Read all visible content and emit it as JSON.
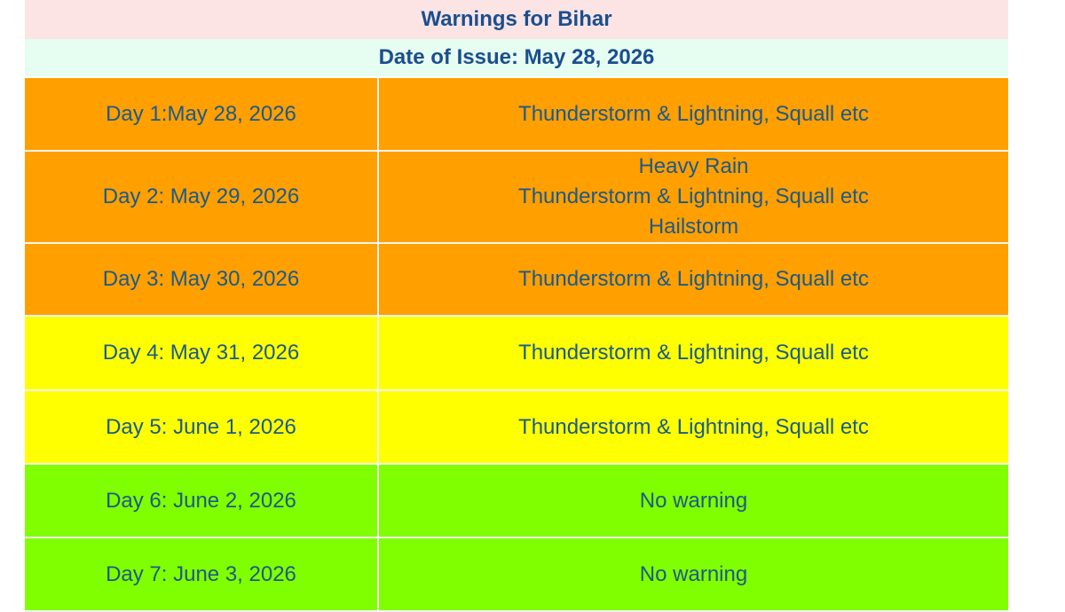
{
  "header": {
    "title": "Warnings for Bihar",
    "date": "Date of Issue: May 28, 2026"
  },
  "table": {
    "rows": [
      {
        "day": "Day 1:May 28, 2026",
        "warnings": [
          "Thunderstorm & Lightning, Squall etc"
        ]
      },
      {
        "day": "Day 2: May 29, 2026",
        "warnings": [
          "Heavy Rain",
          "Thunderstorm & Lightning, Squall etc",
          "Hailstorm"
        ]
      },
      {
        "day": "Day 3: May 30, 2026",
        "warnings": [
          "Thunderstorm & Lightning, Squall etc"
        ]
      },
      {
        "day": "Day 4: May 31, 2026",
        "warnings": [
          "Thunderstorm & Lightning, Squall etc"
        ]
      },
      {
        "day": "Day 5: June 1, 2026",
        "warnings": [
          "Thunderstorm & Lightning, Squall etc"
        ]
      },
      {
        "day": "Day 6: June 2, 2026",
        "warnings": [
          "No warning"
        ]
      },
      {
        "day": "Day 7: June 3, 2026",
        "warnings": [
          "No warning"
        ]
      }
    ]
  }
}
